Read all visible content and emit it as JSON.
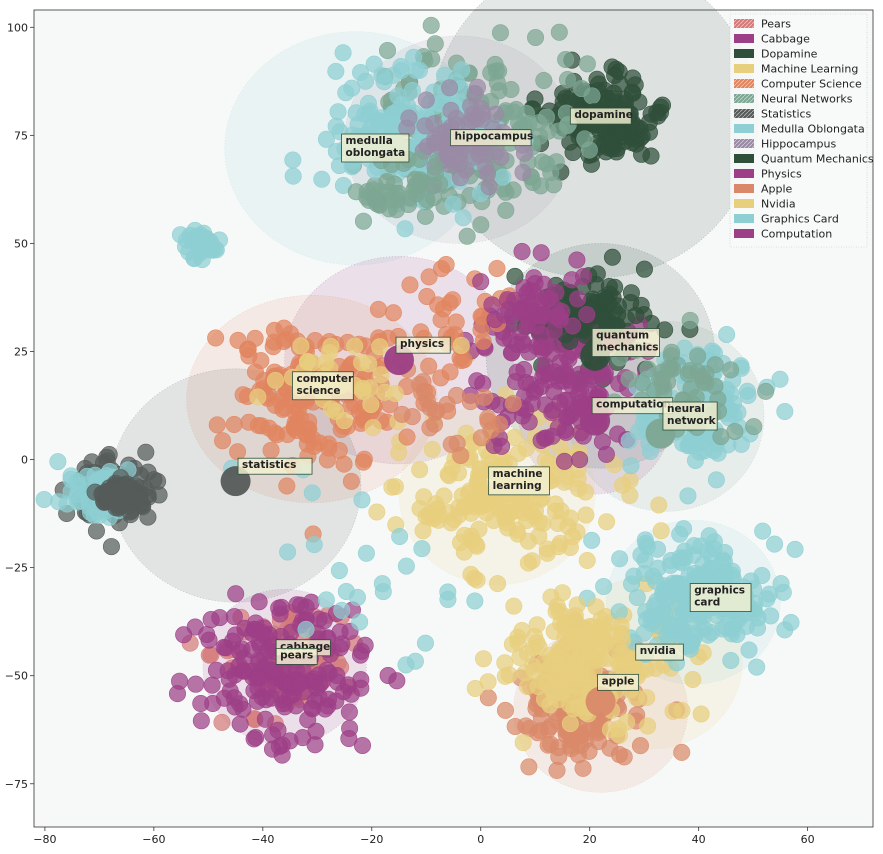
{
  "chart_data": {
    "type": "scatter",
    "title": "",
    "xlabel": "",
    "ylabel": "",
    "xlim": [
      -82,
      72
    ],
    "ylim": [
      -85,
      104
    ],
    "x_ticks": [
      -80,
      -60,
      -40,
      -20,
      0,
      20,
      40,
      60
    ],
    "y_ticks": [
      100,
      75,
      50,
      25,
      0,
      -25,
      -50,
      -75
    ],
    "x_tick_labels": [
      "−80",
      "−60",
      "−40",
      "−20",
      "0",
      "20",
      "40",
      "60"
    ],
    "y_tick_labels": [
      "100",
      "75",
      "50",
      "25",
      "0",
      "−25",
      "−50",
      "−75"
    ],
    "grid": false,
    "background": "#f7f9f8",
    "legend_position": "top-right",
    "series": [
      {
        "name": "Pears",
        "color": "#d47a7a",
        "center": [
          -36,
          -47
        ],
        "spread": 11,
        "count": 90,
        "seed": 11
      },
      {
        "name": "Cabbage",
        "color": "#9c3f86",
        "center": [
          -36,
          -48
        ],
        "spread": 14,
        "count": 190,
        "seed": 12
      },
      {
        "name": "Dopamine",
        "color": "#2f4f3a",
        "center": [
          22,
          80
        ],
        "spread": 9,
        "count": 150,
        "seed": 13
      },
      {
        "name": "Machine Learning",
        "color": "#e8cf7e",
        "center": [
          5,
          -8
        ],
        "spread": 16,
        "count": 200,
        "seed": 14
      },
      {
        "name": "Computer Science",
        "color": "#e0855f",
        "center": [
          -30,
          15
        ],
        "spread": 14,
        "count": 170,
        "seed": 15
      },
      {
        "name": "Neural Networks",
        "color": "#7da693",
        "center": [
          0,
          76
        ],
        "spread": 17,
        "count": 170,
        "seed": 16
      },
      {
        "name": "Statistics",
        "color": "#555b59",
        "center": [
          -67,
          -7
        ],
        "spread": 7,
        "count": 110,
        "seed": 17
      },
      {
        "name": "Medulla Oblongata",
        "color": "#8ecfd3",
        "center": [
          -14,
          76
        ],
        "spread": 14,
        "count": 170,
        "seed": 18
      },
      {
        "name": "Hippocampus",
        "color": "#9a8aa5",
        "center": [
          -4,
          74
        ],
        "spread": 10,
        "count": 60,
        "seed": 19
      },
      {
        "name": "Quantum Mechanics",
        "color": "#2f4f3a",
        "center": [
          20,
          30
        ],
        "spread": 12,
        "count": 80,
        "seed": 20
      },
      {
        "name": "Physics",
        "color": "#9c3f86",
        "center": [
          14,
          23
        ],
        "spread": 14,
        "count": 110,
        "seed": 21
      },
      {
        "name": "Apple",
        "color": "#d9896a",
        "center": [
          18,
          -58
        ],
        "spread": 11,
        "count": 130,
        "seed": 22
      },
      {
        "name": "Nvidia",
        "color": "#e8cf7e",
        "center": [
          22,
          -48
        ],
        "spread": 13,
        "count": 130,
        "seed": 23
      },
      {
        "name": "Graphics Card",
        "color": "#8ecfd3",
        "center": [
          40,
          -32
        ],
        "spread": 13,
        "count": 210,
        "seed": 24
      },
      {
        "name": "Computation",
        "color": "#9c3f86",
        "center": [
          18,
          12
        ],
        "spread": 10,
        "count": 50,
        "seed": 25
      }
    ],
    "extra_clouds": [
      {
        "series": "Medulla Oblongata",
        "center": [
          -51,
          50
        ],
        "spread": 2.5,
        "count": 45,
        "seed": 31
      },
      {
        "series": "Graphics Card",
        "center": [
          40,
          12
        ],
        "spread": 12,
        "count": 140,
        "seed": 32
      },
      {
        "series": "Neural Networks",
        "center": [
          36,
          16
        ],
        "spread": 10,
        "count": 50,
        "seed": 33
      },
      {
        "series": "Graphics Card",
        "center": [
          -70,
          -8
        ],
        "spread": 6,
        "count": 60,
        "seed": 34
      },
      {
        "series": "Statistics",
        "center": [
          -66,
          -8
        ],
        "spread": 3,
        "count": 90,
        "seed": 35
      },
      {
        "series": "Dopamine",
        "center": [
          18,
          34
        ],
        "spread": 6,
        "count": 60,
        "seed": 36
      },
      {
        "series": "Computer Science",
        "center": [
          -5,
          32
        ],
        "spread": 12,
        "count": 40,
        "seed": 37
      },
      {
        "series": "Machine Learning",
        "center": [
          -25,
          20
        ],
        "spread": 10,
        "count": 40,
        "seed": 38
      },
      {
        "series": "Graphics Card",
        "center": [
          -22,
          -25
        ],
        "spread": 20,
        "count": 25,
        "seed": 39
      },
      {
        "series": "Cabbage",
        "center": [
          10,
          35
        ],
        "spread": 8,
        "count": 50,
        "seed": 40
      },
      {
        "series": "Neural Networks",
        "center": [
          -15,
          62
        ],
        "spread": 8,
        "count": 40,
        "seed": 41
      },
      {
        "series": "Apple",
        "center": [
          -5,
          10
        ],
        "spread": 10,
        "count": 25,
        "seed": 42
      },
      {
        "series": "Machine Learning",
        "center": [
          15,
          -45
        ],
        "spread": 10,
        "count": 80,
        "seed": 43
      }
    ],
    "halos": [
      {
        "series": "Dopamine",
        "center": [
          21,
          79
        ],
        "radius_x": 30,
        "radius_y": 37
      },
      {
        "series": "Medulla Oblongata",
        "center": [
          -23,
          72
        ],
        "radius_x": 24,
        "radius_y": 27
      },
      {
        "series": "Hippocampus",
        "center": [
          -4,
          74
        ],
        "radius_x": 21,
        "radius_y": 24
      },
      {
        "series": "Physics",
        "center": [
          -15,
          23
        ],
        "radius_x": 21,
        "radius_y": 24
      },
      {
        "series": "Computer Science",
        "center": [
          -31,
          14
        ],
        "radius_x": 23,
        "radius_y": 24
      },
      {
        "series": "Statistics",
        "center": [
          -45,
          -6
        ],
        "radius_x": 23,
        "radius_y": 27
      },
      {
        "series": "Quantum Mechanics",
        "center": [
          22,
          24
        ],
        "radius_x": 21,
        "radius_y": 26
      },
      {
        "series": "Neural Networks",
        "center": [
          34,
          10
        ],
        "radius_x": 18,
        "radius_y": 22
      },
      {
        "series": "Computation",
        "center": [
          21,
          10
        ],
        "radius_x": 14,
        "radius_y": 18
      },
      {
        "series": "Machine Learning",
        "center": [
          3,
          -8
        ],
        "radius_x": 18,
        "radius_y": 21
      },
      {
        "series": "Graphics Card",
        "center": [
          39,
          -33
        ],
        "radius_x": 16,
        "radius_y": 19
      },
      {
        "series": "Nvidia",
        "center": [
          31,
          -47
        ],
        "radius_x": 17,
        "radius_y": 20
      },
      {
        "series": "Apple",
        "center": [
          22,
          -58
        ],
        "radius_x": 16,
        "radius_y": 19
      },
      {
        "series": "Cabbage",
        "center": [
          -36,
          -48
        ],
        "radius_x": 15,
        "radius_y": 18
      }
    ],
    "markers": [
      {
        "label": "dopamine",
        "series": "Dopamine",
        "x": 21,
        "y": 79
      },
      {
        "label": "hippocampus",
        "series": "Hippocampus",
        "x": -5,
        "y": 71
      },
      {
        "label": "physics",
        "series": "Physics",
        "x": -15,
        "y": 23
      },
      {
        "label": "quantum mechanics",
        "series": "Quantum Mechanics",
        "x": 21,
        "y": 24
      },
      {
        "label": "computation",
        "series": "Computation",
        "x": 21,
        "y": 9
      },
      {
        "label": "neural network",
        "series": "Neural Networks",
        "x": 33,
        "y": 6
      },
      {
        "label": "statistics",
        "series": "Statistics",
        "x": -45,
        "y": -5
      },
      {
        "label": "apple",
        "series": "Apple",
        "x": 22,
        "y": -56
      }
    ],
    "annotations": [
      {
        "lines": [
          "medulla",
          "oblongata"
        ],
        "x": -25,
        "y": 73
      },
      {
        "lines": [
          "hippocampus"
        ],
        "x": -5,
        "y": 74
      },
      {
        "lines": [
          "dopamine"
        ],
        "x": 17,
        "y": 79
      },
      {
        "lines": [
          "physics"
        ],
        "x": -15,
        "y": 26
      },
      {
        "lines": [
          "computer",
          "science"
        ],
        "x": -34,
        "y": 18
      },
      {
        "lines": [
          "quantum",
          "mechanics"
        ],
        "x": 21,
        "y": 28
      },
      {
        "lines": [
          "computation"
        ],
        "x": 21,
        "y": 12
      },
      {
        "lines": [
          "neural",
          "network"
        ],
        "x": 34,
        "y": 11
      },
      {
        "lines": [
          "statistics"
        ],
        "x": -44,
        "y": -2
      },
      {
        "lines": [
          "machine",
          "learning"
        ],
        "x": 2,
        "y": -4
      },
      {
        "lines": [
          "graphics",
          "card"
        ],
        "x": 39,
        "y": -31
      },
      {
        "lines": [
          "nvidia"
        ],
        "x": 29,
        "y": -45
      },
      {
        "lines": [
          "apple"
        ],
        "x": 22,
        "y": -52
      },
      {
        "lines": [
          "cabbage"
        ],
        "x": -37,
        "y": -44
      },
      {
        "lines": [
          "pears"
        ],
        "x": -37,
        "y": -46
      }
    ],
    "legend": [
      {
        "label": "Pears",
        "color": "#d47a7a",
        "hatch": true
      },
      {
        "label": "Cabbage",
        "color": "#9c3f86",
        "hatch": false
      },
      {
        "label": "Dopamine",
        "color": "#2f4f3a",
        "hatch": false
      },
      {
        "label": "Machine Learning",
        "color": "#e8cf7e",
        "hatch": false
      },
      {
        "label": "Computer Science",
        "color": "#e0855f",
        "hatch": true
      },
      {
        "label": "Neural Networks",
        "color": "#7da693",
        "hatch": true
      },
      {
        "label": "Statistics",
        "color": "#555b59",
        "hatch": true
      },
      {
        "label": "Medulla Oblongata",
        "color": "#8ecfd3",
        "hatch": false
      },
      {
        "label": "Hippocampus",
        "color": "#9a8aa5",
        "hatch": true
      },
      {
        "label": "Quantum Mechanics",
        "color": "#2f4f3a",
        "hatch": false
      },
      {
        "label": "Physics",
        "color": "#9c3f86",
        "hatch": false
      },
      {
        "label": "Apple",
        "color": "#d9896a",
        "hatch": false
      },
      {
        "label": "Nvidia",
        "color": "#e8cf7e",
        "hatch": false
      },
      {
        "label": "Graphics Card",
        "color": "#8ecfd3",
        "hatch": false
      },
      {
        "label": "Computation",
        "color": "#9c3f86",
        "hatch": false
      }
    ]
  }
}
